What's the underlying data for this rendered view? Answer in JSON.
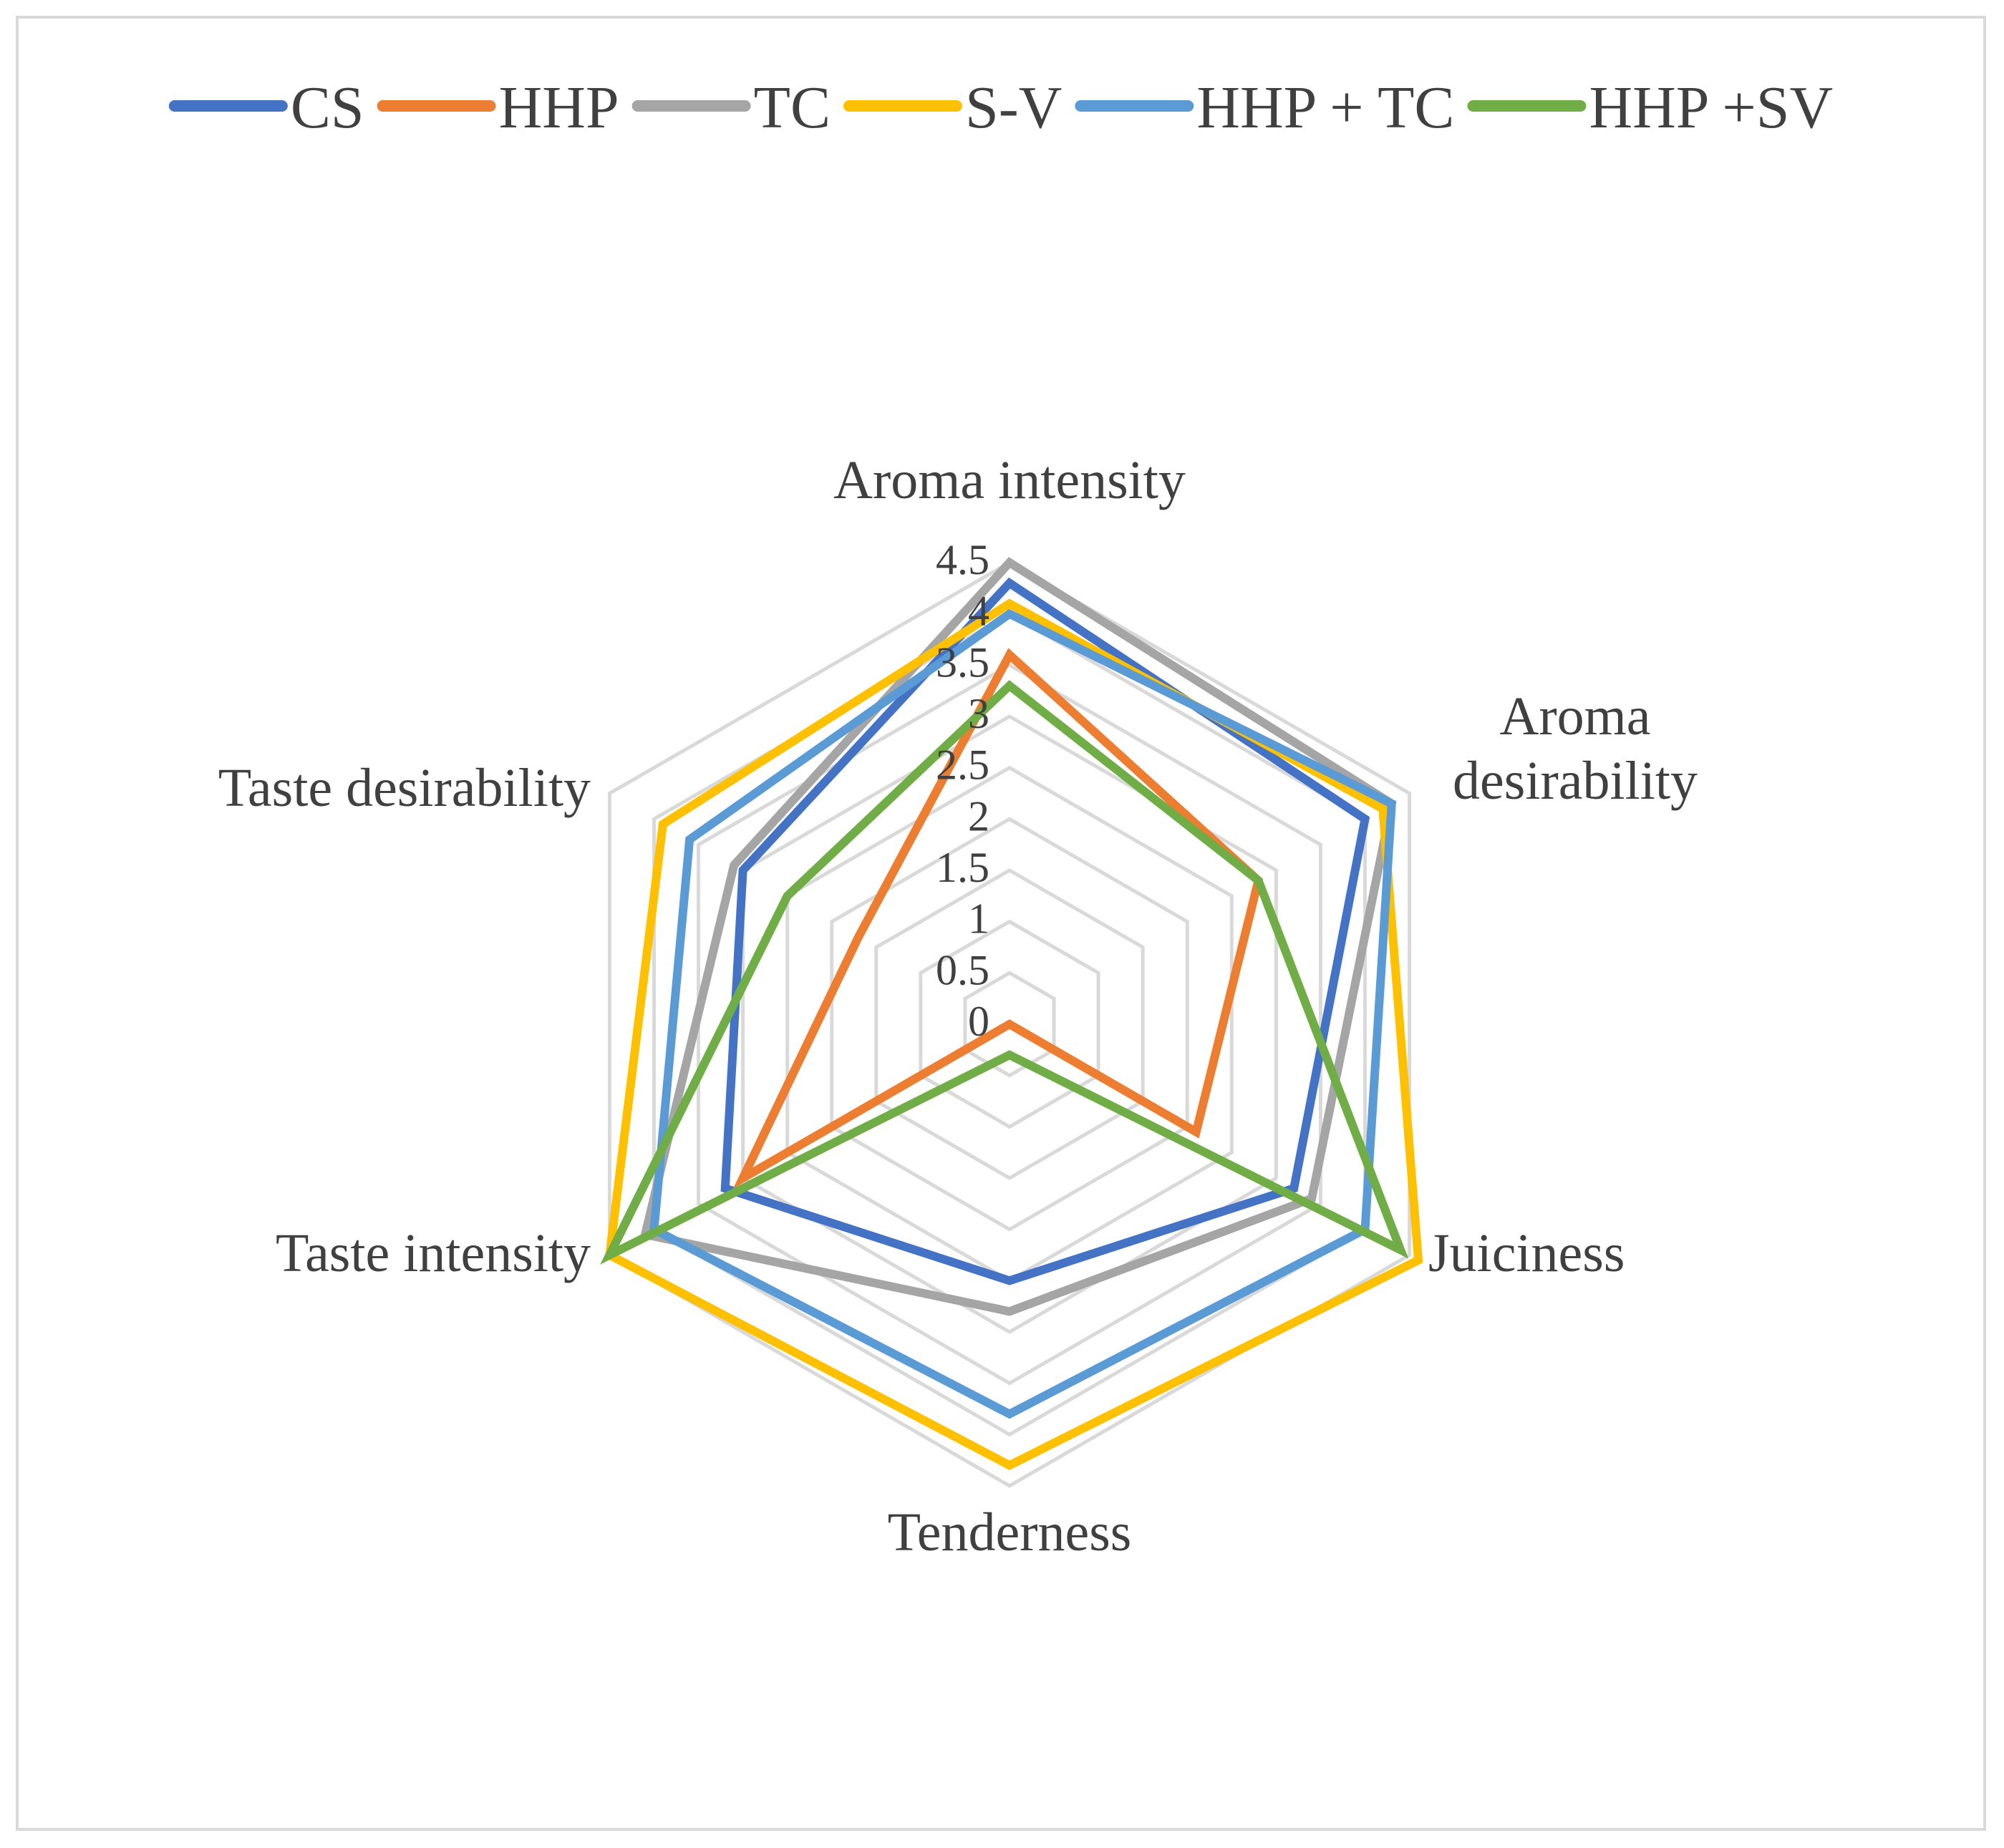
{
  "chart_data": {
    "type": "radar",
    "axes": [
      "Aroma intensity",
      "Aroma desirability",
      "Juiciness",
      "Tenderness",
      "Taste intensity",
      "Taste desirability"
    ],
    "axis_label_lines": [
      [
        "Aroma intensity"
      ],
      [
        "Aroma",
        "desirability"
      ],
      [
        "Juiciness"
      ],
      [
        "Tenderness"
      ],
      [
        "Taste intensity"
      ],
      [
        "Taste desirability"
      ]
    ],
    "ticks": [
      "0",
      "0.5",
      "1",
      "1.5",
      "2",
      "2.5",
      "3",
      "3.5",
      "4",
      "4.5"
    ],
    "rmin": 0,
    "rmax": 4.5,
    "grid": true,
    "legend_position": "top",
    "series": [
      {
        "name": "CS",
        "color": "#4472C4",
        "values": [
          4.3,
          4.0,
          3.2,
          2.5,
          3.2,
          3.0
        ]
      },
      {
        "name": "HHP",
        "color": "#ED7D31",
        "values": [
          3.6,
          2.8,
          2.1,
          0.0,
          3.0,
          1.7
        ]
      },
      {
        "name": "TC",
        "color": "#A5A5A5",
        "values": [
          4.5,
          4.3,
          3.4,
          2.8,
          4.1,
          3.1
        ]
      },
      {
        "name": "S-V",
        "color": "#FFC000",
        "values": [
          4.1,
          4.2,
          4.6,
          4.3,
          4.5,
          3.9
        ]
      },
      {
        "name": "HHP + TC",
        "color": "#5B9BD5",
        "values": [
          4.0,
          4.3,
          4.0,
          3.8,
          4.0,
          3.6
        ]
      },
      {
        "name": "HHP +SV",
        "color": "#70AD47",
        "values": [
          3.3,
          2.8,
          4.4,
          0.3,
          4.5,
          2.5
        ]
      }
    ]
  }
}
